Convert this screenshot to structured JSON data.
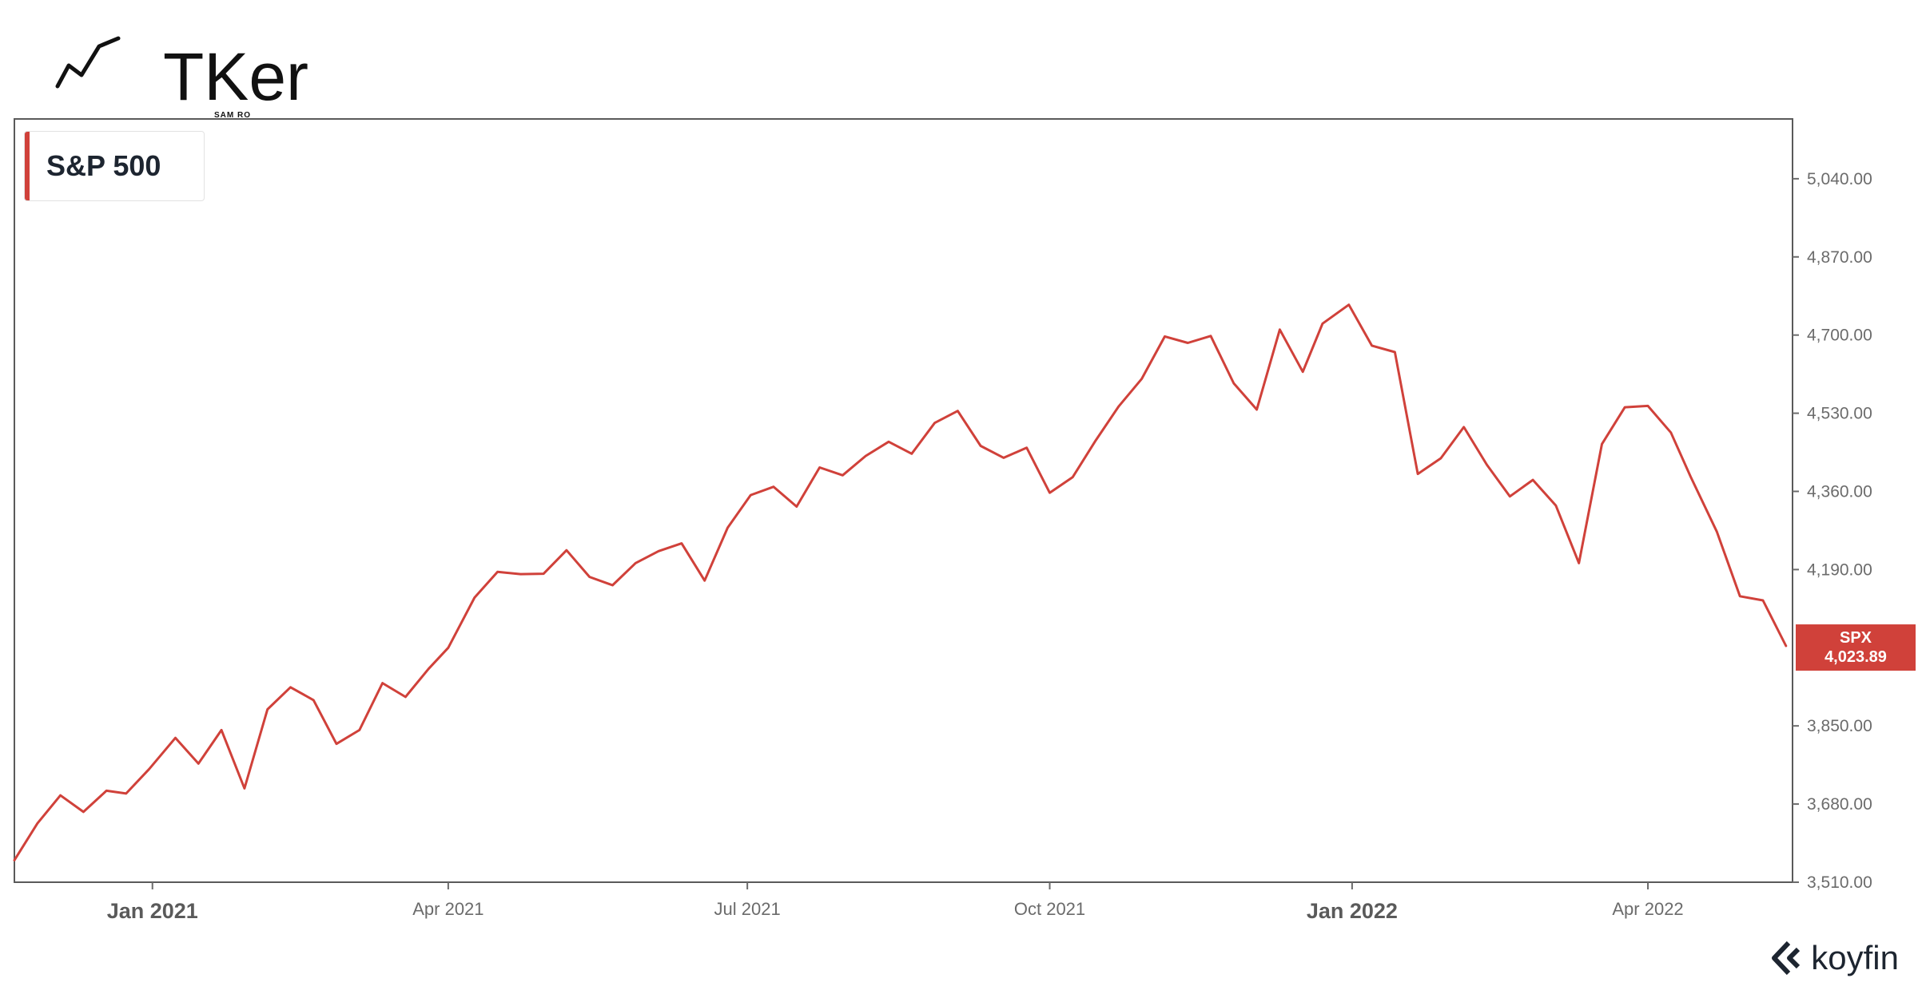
{
  "header": {
    "logo_text": "TKer",
    "logo_subtitle": "SAM RO"
  },
  "branding": {
    "name": "koyfin"
  },
  "colors": {
    "series": "#d0413a",
    "axis": "#6b6b6b",
    "text": "#1d2530"
  },
  "chart_data": {
    "type": "line",
    "title": "S&P 500",
    "xlabel": "",
    "ylabel": "",
    "ylim": [
      3510,
      5170
    ],
    "grid": false,
    "legend_position": "top-left",
    "y_ticks": [
      "3,510.00",
      "3,680.00",
      "3,850.00",
      "4,190.00",
      "4,360.00",
      "4,530.00",
      "4,700.00",
      "4,870.00",
      "5,040.00"
    ],
    "x_ticks": [
      {
        "label": "Jan 2021",
        "date": "2021-01-01",
        "major": true
      },
      {
        "label": "Apr 2021",
        "date": "2021-04-01",
        "major": false
      },
      {
        "label": "Jul 2021",
        "date": "2021-07-01",
        "major": false
      },
      {
        "label": "Oct 2021",
        "date": "2021-10-01",
        "major": false
      },
      {
        "label": "Jan 2022",
        "date": "2022-01-01",
        "major": true
      },
      {
        "label": "Apr 2022",
        "date": "2022-04-01",
        "major": false
      }
    ],
    "last_value_label": {
      "ticker": "SPX",
      "value": "4,023.89"
    },
    "series": [
      {
        "name": "SPX",
        "color": "#d0413a",
        "x": [
          "2020-11-20",
          "2020-11-27",
          "2020-12-04",
          "2020-12-11",
          "2020-12-18",
          "2020-12-24",
          "2020-12-31",
          "2021-01-08",
          "2021-01-15",
          "2021-01-22",
          "2021-01-29",
          "2021-02-05",
          "2021-02-12",
          "2021-02-19",
          "2021-02-26",
          "2021-03-05",
          "2021-03-12",
          "2021-03-19",
          "2021-03-26",
          "2021-04-01",
          "2021-04-09",
          "2021-04-16",
          "2021-04-23",
          "2021-04-30",
          "2021-05-07",
          "2021-05-14",
          "2021-05-21",
          "2021-05-28",
          "2021-06-04",
          "2021-06-11",
          "2021-06-18",
          "2021-06-25",
          "2021-07-02",
          "2021-07-09",
          "2021-07-16",
          "2021-07-23",
          "2021-07-30",
          "2021-08-06",
          "2021-08-13",
          "2021-08-20",
          "2021-08-27",
          "2021-09-03",
          "2021-09-10",
          "2021-09-17",
          "2021-09-24",
          "2021-10-01",
          "2021-10-08",
          "2021-10-15",
          "2021-10-22",
          "2021-10-29",
          "2021-11-05",
          "2021-11-12",
          "2021-11-19",
          "2021-11-26",
          "2021-12-03",
          "2021-12-10",
          "2021-12-17",
          "2021-12-23",
          "2021-12-31",
          "2022-01-07",
          "2022-01-14",
          "2022-01-21",
          "2022-01-28",
          "2022-02-04",
          "2022-02-11",
          "2022-02-18",
          "2022-02-25",
          "2022-03-04",
          "2022-03-11",
          "2022-03-18",
          "2022-03-25",
          "2022-04-01",
          "2022-04-08",
          "2022-04-14",
          "2022-04-22",
          "2022-04-29",
          "2022-05-06",
          "2022-05-13"
        ],
        "values": [
          3558,
          3638,
          3699,
          3663,
          3709,
          3703,
          3756,
          3824,
          3768,
          3841,
          3714,
          3886,
          3934,
          3906,
          3811,
          3841,
          3943,
          3913,
          3974,
          4020,
          4129,
          4185,
          4180,
          4181,
          4232,
          4174,
          4156,
          4204,
          4230,
          4247,
          4166,
          4281,
          4352,
          4370,
          4327,
          4412,
          4395,
          4437,
          4468,
          4442,
          4509,
          4535,
          4459,
          4433,
          4455,
          4357,
          4391,
          4471,
          4545,
          4605,
          4697,
          4683,
          4698,
          4595,
          4538,
          4712,
          4620,
          4725,
          4766,
          4677,
          4663,
          4398,
          4432,
          4500,
          4418,
          4349,
          4385,
          4329,
          4204,
          4463,
          4543,
          4546,
          4488,
          4392,
          4272,
          4132,
          4123,
          4023.89
        ]
      }
    ]
  }
}
